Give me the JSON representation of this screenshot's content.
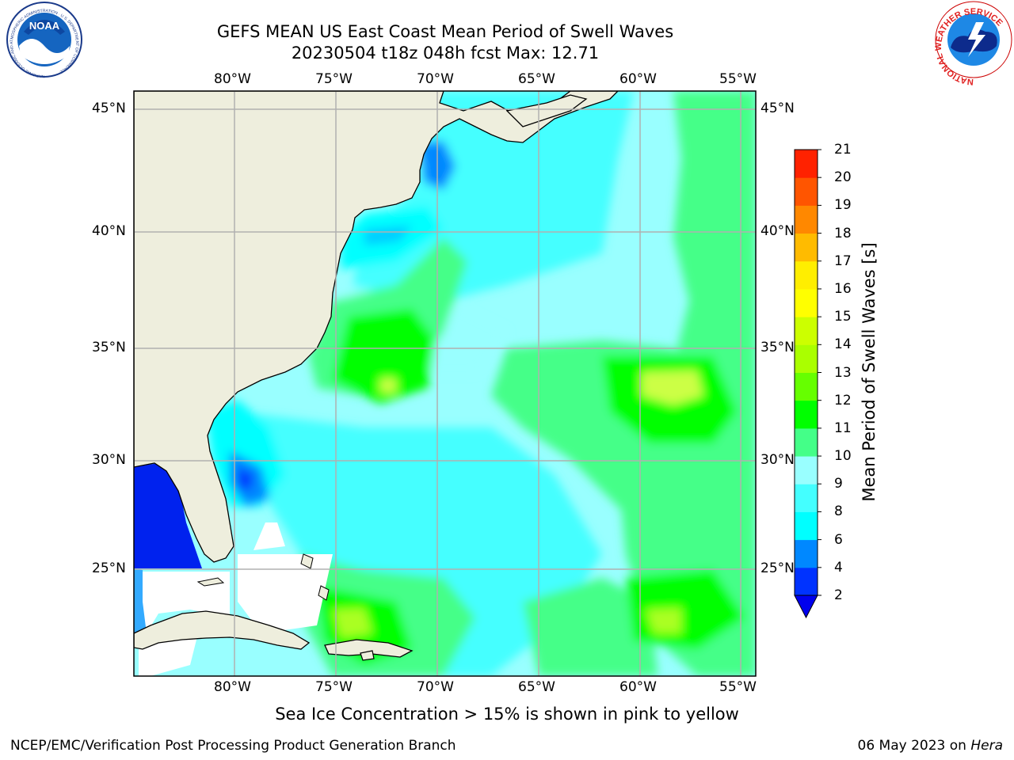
{
  "header": {
    "title_line1": "GEFS MEAN US East Coast Mean Period of Swell Waves",
    "title_line2": "20230504 t18z 048h fcst   Max: 12.71"
  },
  "map": {
    "lon_labels": [
      "80°W",
      "75°W",
      "70°W",
      "65°W",
      "60°W",
      "55°W"
    ],
    "lat_labels": [
      "45°N",
      "40°N",
      "35°N",
      "30°N",
      "25°N"
    ],
    "colors": {
      "land": "#eeeedd",
      "grid": "#b0b0b0",
      "no_data": "#ffffff"
    }
  },
  "colorbar": {
    "title": "Mean Period of Swell Waves [s]",
    "ticks": [
      "2",
      "4",
      "6",
      "8",
      "9",
      "10",
      "11",
      "12",
      "13",
      "14",
      "15",
      "16",
      "17",
      "18",
      "19",
      "20",
      "21"
    ],
    "colors": [
      "#0033ff",
      "#0088ff",
      "#00ffff",
      "#44ffff",
      "#99ffff",
      "#44ff88",
      "#00ff00",
      "#66ff00",
      "#aaff00",
      "#ccff00",
      "#ffff00",
      "#ffee00",
      "#ffbb00",
      "#ff8800",
      "#ff5500",
      "#ff2200"
    ]
  },
  "logos": {
    "left": {
      "text": "NOAA",
      "ring_text": "NATIONAL OCEANIC AND ATMOSPHERIC ADMINISTRATION · U.S. DEPARTMENT OF COMMERCE"
    },
    "right": {
      "ring_text": "NATIONAL WEATHER SERVICE"
    }
  },
  "footer": {
    "note": "Sea Ice Concentration > 15% is shown in pink to yellow",
    "left": "NCEP/EMC/Verification Post Processing Product Generation Branch",
    "right_prefix": "06 May 2023 on ",
    "right_host": "Hera"
  }
}
